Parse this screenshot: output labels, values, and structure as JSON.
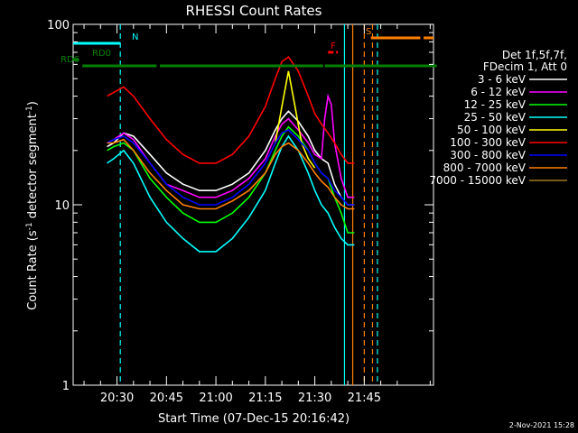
{
  "chart_data": {
    "type": "line",
    "title": "RHESSI Count Rates",
    "xlabel": "Start Time (07-Dec-15 20:16:42)",
    "ylabel_main": "Count Rate (s",
    "ylabel_sup1": "-1",
    "ylabel_mid": " detector segment",
    "ylabel_sup2": "-1",
    "ylabel_end": ")",
    "yscale": "log",
    "xlim_min": [
      16.7,
      56.0
    ],
    "ylim": [
      1,
      100
    ],
    "x_ticks": [
      {
        "min": 30,
        "label": "20:30"
      },
      {
        "min": 45,
        "label": "20:45"
      },
      {
        "min": 60,
        "label": "21:00"
      },
      {
        "min": 75,
        "label": "21:15"
      },
      {
        "min": 90,
        "label": "21:30"
      },
      {
        "min": 105,
        "label": "21:45"
      }
    ],
    "y_ticks": [
      {
        "value": 1,
        "label": "1"
      },
      {
        "value": 10,
        "label": "10"
      },
      {
        "value": 100,
        "label": "100"
      }
    ],
    "legend_header": [
      "Det 1f,5f,7f,",
      "FDecim 1, Att 0"
    ],
    "legend_placement": "right",
    "date_stamp": "2-Nov-2021 15:28",
    "series": [
      {
        "name": "3 - 6 keV",
        "color": "#ffffff",
        "x": [
          27,
          29,
          32,
          35,
          40,
          45,
          50,
          55,
          60,
          65,
          70,
          75,
          78,
          80,
          82,
          85,
          88,
          90,
          92,
          94,
          96,
          98,
          100,
          102
        ],
        "y": [
          21,
          22,
          25,
          24,
          19,
          15,
          13,
          12,
          12,
          13,
          15,
          20,
          26,
          30,
          33,
          29,
          24,
          20,
          18,
          17,
          13,
          11,
          10,
          10
        ]
      },
      {
        "name": "6 - 12 keV",
        "color": "#ff00ff",
        "x": [
          27,
          29,
          32,
          35,
          40,
          45,
          50,
          55,
          60,
          65,
          70,
          75,
          78,
          80,
          82,
          85,
          88,
          90,
          92,
          93,
          94,
          95,
          96,
          98,
          100,
          102
        ],
        "y": [
          22,
          23,
          25,
          23,
          17,
          13,
          12,
          11,
          11,
          12,
          14,
          18,
          24,
          28,
          30,
          26,
          22,
          19,
          18,
          30,
          40,
          36,
          22,
          14,
          11,
          11
        ]
      },
      {
        "name": "12 - 25 keV",
        "color": "#00ff00",
        "x": [
          27,
          29,
          32,
          35,
          40,
          45,
          50,
          55,
          60,
          65,
          70,
          75,
          78,
          80,
          82,
          85,
          88,
          90,
          92,
          94,
          96,
          98,
          100,
          102
        ],
        "y": [
          20,
          21,
          22,
          20,
          14,
          11,
          9,
          8,
          8,
          9,
          11,
          15,
          20,
          24,
          27,
          24,
          20,
          17,
          15,
          14,
          11,
          9,
          7,
          7
        ]
      },
      {
        "name": "25 - 50 keV",
        "color": "#00ffff",
        "x": [
          27,
          29,
          32,
          35,
          40,
          45,
          50,
          55,
          60,
          65,
          70,
          75,
          78,
          80,
          82,
          85,
          88,
          90,
          92,
          94,
          96,
          98,
          100,
          102
        ],
        "y": [
          17,
          18,
          20,
          17,
          11,
          8,
          6.5,
          5.5,
          5.5,
          6.5,
          8.5,
          12,
          17,
          21,
          24,
          20,
          15,
          12,
          10,
          9,
          7.5,
          6.5,
          6,
          6
        ]
      },
      {
        "name": "50 - 100 keV",
        "color": "#ffff00",
        "x": [
          78,
          80,
          82,
          84,
          86,
          88,
          90
        ],
        "y": [
          22,
          35,
          55,
          35,
          22,
          18,
          16
        ]
      },
      {
        "name": "100 - 300 keV",
        "color": "#ff0000",
        "x": [
          27,
          29,
          32,
          35,
          40,
          45,
          50,
          55,
          60,
          65,
          70,
          75,
          78,
          80,
          82,
          85,
          88,
          90,
          92,
          94,
          96,
          98,
          100,
          102
        ],
        "y": [
          40,
          42,
          45,
          40,
          30,
          23,
          19,
          17,
          17,
          19,
          24,
          35,
          50,
          62,
          66,
          55,
          40,
          32,
          28,
          25,
          22,
          19,
          17,
          17
        ]
      },
      {
        "name": "300 - 800 keV",
        "color": "#0000ff",
        "x": [
          27,
          29,
          32,
          35,
          40,
          45,
          50,
          55,
          60,
          65,
          70,
          75,
          78,
          80,
          82,
          85,
          88,
          90,
          92,
          94,
          96,
          98,
          100,
          102
        ],
        "y": [
          22,
          23,
          24,
          22,
          17,
          13,
          11,
          10,
          10,
          11,
          13,
          17,
          22,
          25,
          26,
          23,
          20,
          17,
          15,
          14,
          12,
          11,
          10,
          10
        ]
      },
      {
        "name": "800 - 7000 keV",
        "color": "#ff8000",
        "x": [
          27,
          29,
          32,
          35,
          40,
          45,
          50,
          55,
          60,
          65,
          70,
          75,
          78,
          80,
          82,
          85,
          88,
          90,
          92,
          94,
          96,
          98,
          100,
          102
        ],
        "y": [
          22,
          22,
          23,
          20,
          15,
          12,
          10,
          9.5,
          9.5,
          10.5,
          12,
          15,
          19,
          21,
          22,
          20,
          17,
          15,
          13.5,
          12.5,
          11,
          10,
          9.5,
          9.5
        ]
      },
      {
        "name": "7000 - 15000 keV",
        "color": "#a0781e",
        "x": [],
        "y": []
      }
    ],
    "attenuator_bars": [
      {
        "label": "N",
        "color": "#00ffff",
        "segments": [
          [
            16.7,
            31
          ]
        ]
      },
      {
        "label": "RD0",
        "color": "#008000",
        "segments": [
          [
            16.7,
            18.5
          ]
        ]
      },
      {
        "label": "RD6",
        "color": "#008000",
        "segments": [
          [
            19.5,
            42
          ],
          [
            43,
            66
          ],
          [
            66,
            92.5
          ],
          [
            93,
            127
          ]
        ]
      },
      {
        "label": "F",
        "color": "#ff0000",
        "segments": [
          [
            94,
            97
          ]
        ]
      },
      {
        "label": "S",
        "color": "#ff8000",
        "segments": [
          [
            107,
            122
          ],
          [
            123,
            126
          ]
        ]
      }
    ],
    "vertical_markers": [
      {
        "min": 31,
        "color": "#00ffff",
        "style": "dashed"
      },
      {
        "min": 99,
        "color": "#00ffff",
        "style": "solid"
      },
      {
        "min": 101.5,
        "color": "#ff8000",
        "style": "solid"
      },
      {
        "min": 105,
        "color": "#ff8000",
        "style": "dashed"
      },
      {
        "min": 107.5,
        "color": "#ff8000",
        "style": "dashed"
      },
      {
        "min": 109,
        "color": "#00ffff",
        "style": "dashed"
      }
    ]
  }
}
